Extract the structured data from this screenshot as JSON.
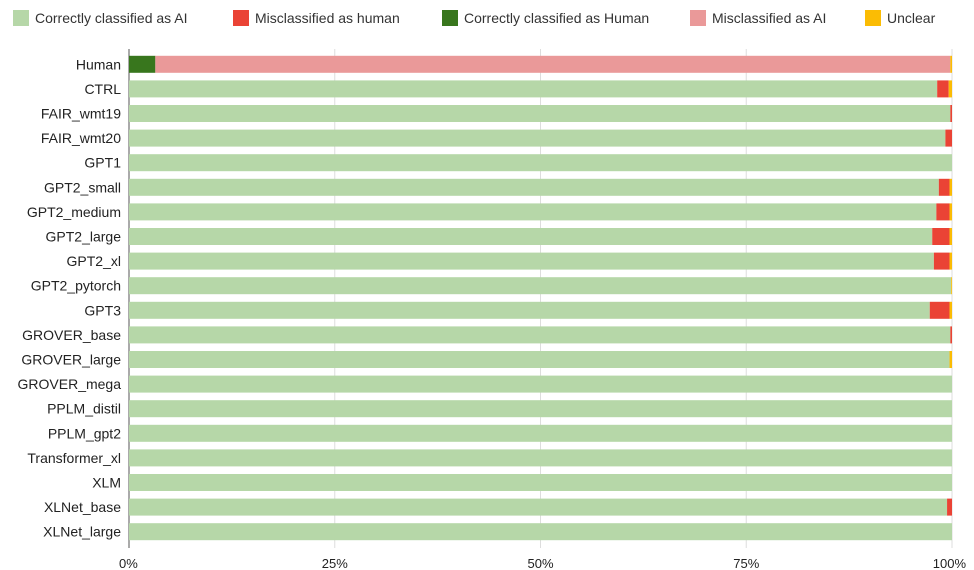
{
  "chart_data": {
    "type": "bar",
    "orientation": "horizontal",
    "stacked": true,
    "percent_stacked": true,
    "legend_position": "top",
    "grid": true,
    "xlim": [
      0,
      100
    ],
    "x_ticks": [
      "0%",
      "25%",
      "50%",
      "75%",
      "100%"
    ],
    "categories": [
      "Human",
      "CTRL",
      "FAIR_wmt19",
      "FAIR_wmt20",
      "GPT1",
      "GPT2_small",
      "GPT2_medium",
      "GPT2_large",
      "GPT2_xl",
      "GPT2_pytorch",
      "GPT3",
      "GROVER_base",
      "GROVER_large",
      "GROVER_mega",
      "PPLM_distil",
      "PPLM_gpt2",
      "Transformer_xl",
      "XLM",
      "XLNet_base",
      "XLNet_large"
    ],
    "series": [
      {
        "name": "Correctly classified as AI",
        "color": "#b6d7a8",
        "values": [
          0,
          98.2,
          99.8,
          99.2,
          100,
          98.4,
          98.1,
          97.6,
          97.8,
          99.9,
          97.3,
          99.8,
          99.7,
          100,
          100,
          100,
          100,
          100,
          99.4,
          100
        ]
      },
      {
        "name": "Misclassified as human",
        "color": "#ea4335",
        "values": [
          0,
          1.4,
          0.2,
          0.8,
          0,
          1.3,
          1.6,
          2.1,
          1.9,
          0,
          2.4,
          0.2,
          0,
          0,
          0,
          0,
          0,
          0,
          0.6,
          0
        ]
      },
      {
        "name": "Correctly classified as Human",
        "color": "#38761d",
        "values": [
          3.2,
          0,
          0,
          0,
          0,
          0,
          0,
          0,
          0,
          0,
          0,
          0,
          0,
          0,
          0,
          0,
          0,
          0,
          0,
          0
        ]
      },
      {
        "name": "Misclassified as AI",
        "color": "#ea9999",
        "values": [
          96.6,
          0,
          0,
          0,
          0,
          0,
          0,
          0,
          0,
          0,
          0,
          0,
          0,
          0,
          0,
          0,
          0,
          0,
          0,
          0
        ]
      },
      {
        "name": "Unclear",
        "color": "#fbbc04",
        "values": [
          0.2,
          0.4,
          0,
          0,
          0,
          0.3,
          0.3,
          0.3,
          0.3,
          0.1,
          0.3,
          0,
          0.3,
          0,
          0,
          0,
          0,
          0,
          0,
          0
        ]
      }
    ]
  }
}
